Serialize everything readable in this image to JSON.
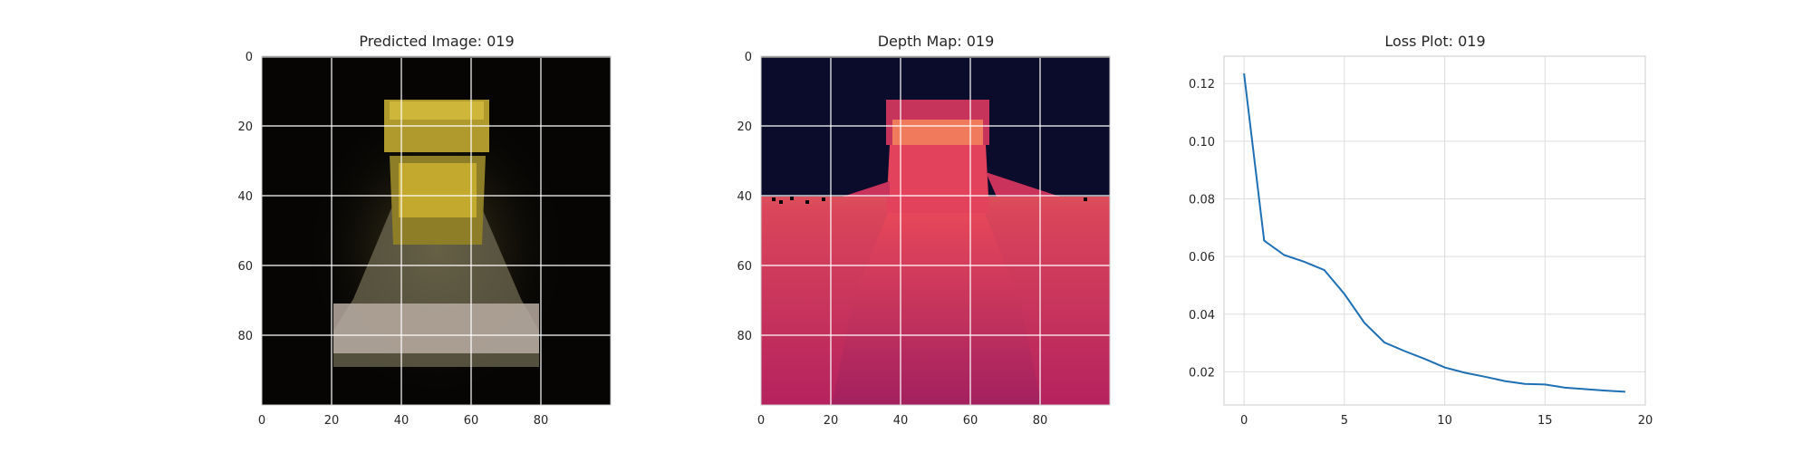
{
  "chart_data": [
    {
      "type": "heatmap",
      "title": "Predicted Image: 019",
      "xlabel": "",
      "ylabel": "",
      "xlim": [
        0,
        100
      ],
      "ylim": [
        100,
        0
      ],
      "xticks": [
        0,
        20,
        40,
        60,
        80
      ],
      "yticks": [
        0,
        20,
        40,
        60,
        80
      ],
      "grid": true,
      "colormap": "rgb"
    },
    {
      "type": "heatmap",
      "title": "Depth Map: 019",
      "xlabel": "",
      "ylabel": "",
      "xlim": [
        0,
        100
      ],
      "ylim": [
        100,
        0
      ],
      "xticks": [
        0,
        20,
        40,
        60,
        80
      ],
      "yticks": [
        0,
        20,
        40,
        60,
        80
      ],
      "grid": true,
      "colormap": "rocket"
    },
    {
      "type": "line",
      "title": "Loss Plot: 019",
      "xlabel": "",
      "ylabel": "",
      "xlim": [
        -1,
        20
      ],
      "ylim": [
        0.0085,
        0.1295
      ],
      "xticks": [
        0,
        5,
        10,
        15,
        20
      ],
      "yticks": [
        0.02,
        0.04,
        0.06,
        0.08,
        0.1,
        0.12
      ],
      "ytick_labels": [
        "0.02",
        "0.04",
        "0.06",
        "0.08",
        "0.10",
        "0.12"
      ],
      "grid": true,
      "line_color": "#1f6fb4",
      "x": [
        0,
        1,
        2,
        3,
        4,
        5,
        6,
        7,
        8,
        9,
        10,
        11,
        12,
        13,
        14,
        15,
        16,
        17,
        18,
        19
      ],
      "values": [
        0.1235,
        0.0655,
        0.0605,
        0.0582,
        0.0553,
        0.047,
        0.037,
        0.0302,
        0.0272,
        0.0245,
        0.0215,
        0.0197,
        0.0183,
        0.0168,
        0.0158,
        0.0156,
        0.0145,
        0.014,
        0.0135,
        0.0131
      ]
    }
  ]
}
